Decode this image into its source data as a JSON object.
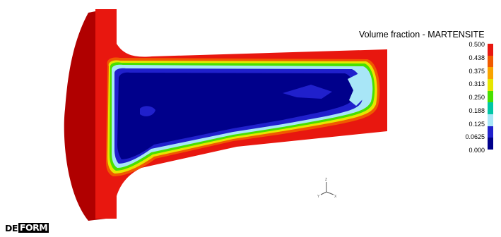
{
  "legend": {
    "title": "Volume fraction - MARTENSITE",
    "ticks": [
      "0.500",
      "0.438",
      "0.375",
      "0.313",
      "0.250",
      "0.188",
      "0.125",
      "0.0625",
      "0.000"
    ],
    "colors": [
      "#e8170f",
      "#f05a00",
      "#f9a400",
      "#e6e600",
      "#48e000",
      "#00c7a6",
      "#a8e6f7",
      "#2020cc",
      "#00008b"
    ]
  },
  "triad": {
    "axis_z": "Z",
    "axis_y": "Y",
    "axis_x": "X"
  },
  "logo": {
    "part1": "DE",
    "part2": "FORM"
  }
}
